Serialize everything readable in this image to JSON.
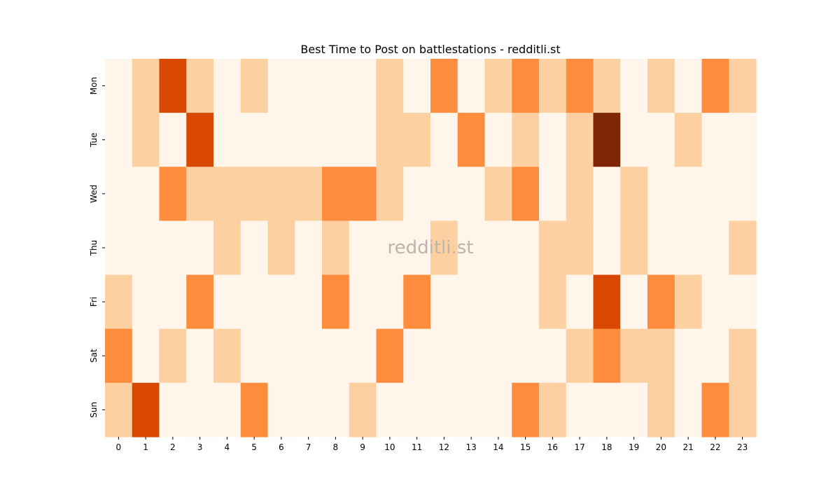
{
  "chart_data": {
    "type": "heatmap",
    "title": "Best Time to Post on battlestations - redditli.st",
    "watermark": "redditli.st",
    "xlabel": "",
    "ylabel": "",
    "x": [
      "0",
      "1",
      "2",
      "3",
      "4",
      "5",
      "6",
      "7",
      "8",
      "9",
      "10",
      "11",
      "12",
      "13",
      "14",
      "15",
      "16",
      "17",
      "18",
      "19",
      "20",
      "21",
      "22",
      "23"
    ],
    "y": [
      "Mon",
      "Tue",
      "Wed",
      "Thu",
      "Fri",
      "Sat",
      "Sun"
    ],
    "colormap": [
      "#fff5eb",
      "#fdd0a2",
      "#fd8d3c",
      "#d94801",
      "#7f2704"
    ],
    "values": [
      [
        0,
        1,
        3,
        1,
        0,
        1,
        0,
        0,
        0,
        0,
        1,
        0,
        2,
        0,
        1,
        2,
        1,
        2,
        1,
        0,
        1,
        0,
        2,
        1
      ],
      [
        0,
        1,
        0,
        3,
        0,
        0,
        0,
        0,
        0,
        0,
        1,
        1,
        0,
        2,
        0,
        1,
        0,
        1,
        4,
        0,
        0,
        1,
        0,
        0
      ],
      [
        0,
        0,
        2,
        1,
        1,
        1,
        1,
        1,
        2,
        2,
        1,
        0,
        0,
        0,
        1,
        2,
        0,
        1,
        0,
        1,
        0,
        0,
        0,
        0
      ],
      [
        0,
        0,
        0,
        0,
        1,
        0,
        1,
        0,
        1,
        0,
        0,
        0,
        1,
        0,
        0,
        0,
        1,
        1,
        0,
        1,
        0,
        0,
        0,
        1
      ],
      [
        1,
        0,
        0,
        2,
        0,
        0,
        0,
        0,
        2,
        0,
        0,
        2,
        0,
        0,
        0,
        0,
        1,
        0,
        3,
        0,
        2,
        1,
        0,
        0
      ],
      [
        2,
        0,
        1,
        0,
        1,
        0,
        0,
        0,
        0,
        0,
        2,
        0,
        0,
        0,
        0,
        0,
        0,
        1,
        2,
        1,
        1,
        0,
        0,
        1
      ],
      [
        1,
        3,
        0,
        0,
        0,
        2,
        0,
        0,
        0,
        1,
        0,
        0,
        0,
        0,
        0,
        2,
        1,
        0,
        0,
        0,
        1,
        0,
        2,
        1
      ]
    ]
  }
}
